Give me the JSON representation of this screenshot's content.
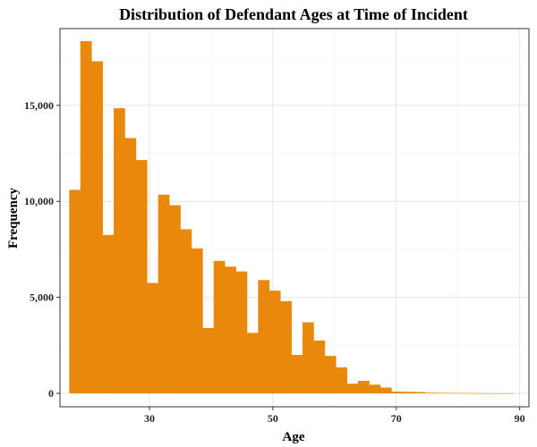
{
  "chart_data": {
    "type": "bar",
    "title": "Distribution of Defendant Ages at Time of Incident",
    "xlabel": "Age",
    "ylabel": "Frequency",
    "xlim": [
      15.5,
      91.5
    ],
    "ylim": [
      -700,
      19000
    ],
    "x_ticks": [
      30,
      50,
      70,
      90
    ],
    "x_tick_labels": [
      "30",
      "50",
      "70",
      "90"
    ],
    "y_ticks": [
      0,
      5000,
      10000,
      15000
    ],
    "y_tick_labels": [
      "0",
      "5,000",
      "10,000",
      "15,000"
    ],
    "grid": true,
    "legend": "none",
    "bar_color": "#E8890C",
    "bin_width": 1.8,
    "bins": [
      {
        "start": 17.0,
        "value": 10600
      },
      {
        "start": 18.8,
        "value": 18350
      },
      {
        "start": 20.6,
        "value": 17300
      },
      {
        "start": 22.4,
        "value": 8250
      },
      {
        "start": 24.2,
        "value": 14850
      },
      {
        "start": 26.0,
        "value": 13300
      },
      {
        "start": 27.8,
        "value": 12150
      },
      {
        "start": 29.6,
        "value": 5750
      },
      {
        "start": 31.4,
        "value": 10350
      },
      {
        "start": 33.2,
        "value": 9800
      },
      {
        "start": 35.0,
        "value": 8550
      },
      {
        "start": 36.8,
        "value": 7550
      },
      {
        "start": 38.6,
        "value": 3400
      },
      {
        "start": 40.4,
        "value": 6900
      },
      {
        "start": 42.2,
        "value": 6600
      },
      {
        "start": 44.0,
        "value": 6350
      },
      {
        "start": 45.8,
        "value": 3150
      },
      {
        "start": 47.6,
        "value": 5900
      },
      {
        "start": 49.4,
        "value": 5350
      },
      {
        "start": 51.2,
        "value": 4800
      },
      {
        "start": 53.0,
        "value": 2000
      },
      {
        "start": 54.8,
        "value": 3700
      },
      {
        "start": 56.6,
        "value": 2750
      },
      {
        "start": 58.4,
        "value": 1950
      },
      {
        "start": 60.2,
        "value": 1350
      },
      {
        "start": 62.0,
        "value": 500
      },
      {
        "start": 63.8,
        "value": 650
      },
      {
        "start": 65.6,
        "value": 450
      },
      {
        "start": 67.4,
        "value": 300
      },
      {
        "start": 69.2,
        "value": 90
      },
      {
        "start": 71.0,
        "value": 80
      },
      {
        "start": 72.8,
        "value": 70
      },
      {
        "start": 74.6,
        "value": 35
      },
      {
        "start": 76.4,
        "value": 25
      },
      {
        "start": 78.2,
        "value": 20
      },
      {
        "start": 80.0,
        "value": 15
      },
      {
        "start": 81.8,
        "value": 10
      },
      {
        "start": 83.6,
        "value": 5
      },
      {
        "start": 85.4,
        "value": 5
      },
      {
        "start": 87.2,
        "value": 3
      }
    ]
  }
}
